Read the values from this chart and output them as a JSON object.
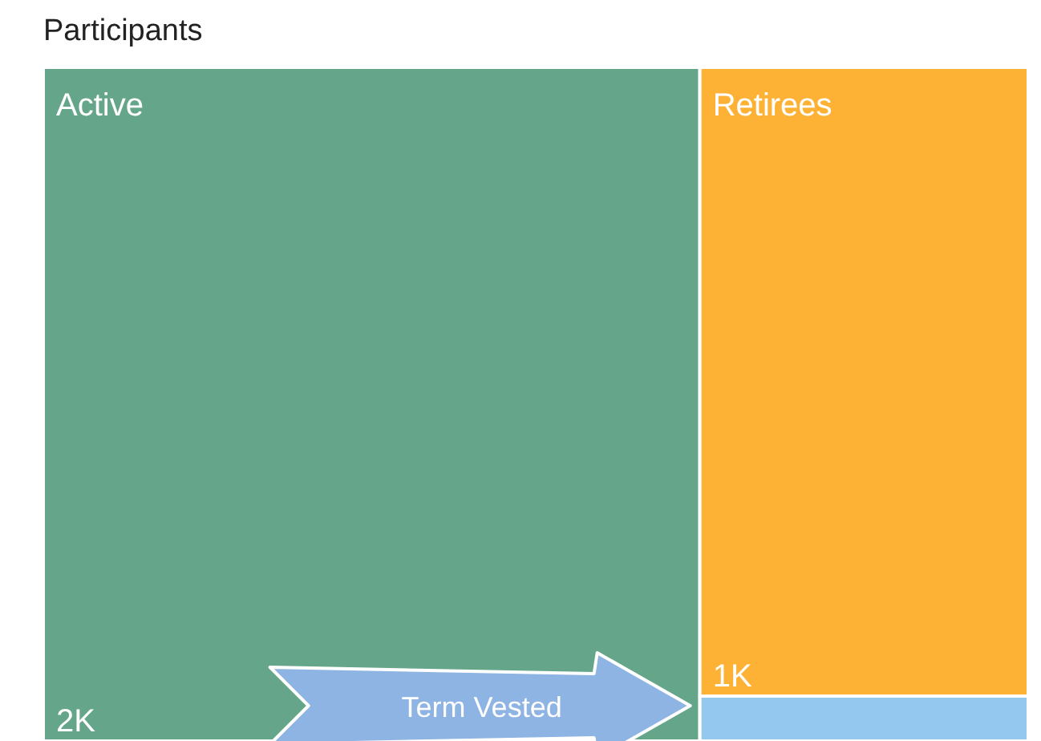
{
  "chart_data": {
    "type": "other",
    "title": "Participants",
    "categories": [
      "Active",
      "Retirees",
      null
    ],
    "values": [
      2000,
      1000,
      null
    ],
    "value_labels": [
      "2K",
      "1K",
      null
    ],
    "colors": [
      "#65a68b",
      "#fdb235",
      "#95c8ef"
    ],
    "annotations": [
      "Term Vested"
    ]
  }
}
